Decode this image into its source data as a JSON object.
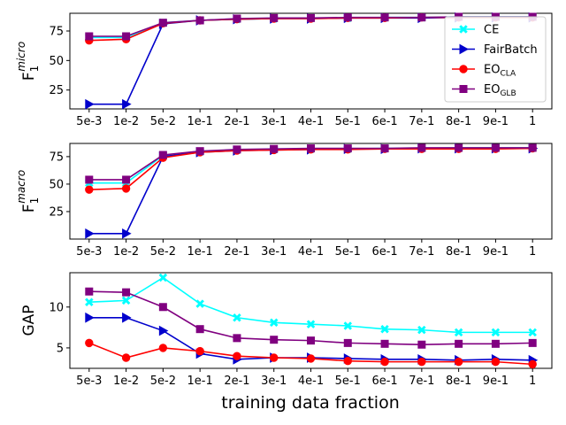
{
  "chart_data": [
    {
      "type": "line",
      "ylabel_main": "F",
      "ylabel_sub": "1",
      "ylabel_sup": "micro",
      "categories": [
        "5e-3",
        "1e-2",
        "5e-2",
        "1e-1",
        "2e-1",
        "3e-1",
        "4e-1",
        "5e-1",
        "6e-1",
        "7e-1",
        "8e-1",
        "9e-1",
        "1"
      ],
      "yticks": [
        25,
        50,
        75
      ],
      "ylim": [
        9,
        90
      ],
      "legend": "top-right",
      "series": [
        {
          "name": "CE",
          "key": "ce",
          "color": "#00ffff",
          "marker": "x",
          "values": [
            69.5,
            69.5,
            82,
            84,
            85,
            85.5,
            86,
            86,
            86.5,
            86.5,
            87,
            87,
            87
          ]
        },
        {
          "name": "FairBatch",
          "key": "fairbatch",
          "color": "#0000cc",
          "marker": "triangle",
          "values": [
            13,
            13,
            81,
            84,
            85,
            85.5,
            85.5,
            86,
            86,
            86,
            86.5,
            86.5,
            86.5
          ]
        },
        {
          "name": "EO",
          "sub": "CLA",
          "key": "eo_cla",
          "color": "#ff0000",
          "marker": "circle",
          "values": [
            67,
            68,
            81.5,
            84,
            85,
            85.5,
            85.5,
            86,
            86,
            86.5,
            86.5,
            86.5,
            86.5
          ]
        },
        {
          "name": "EO",
          "sub": "GLB",
          "key": "eo_glb",
          "color": "#800080",
          "marker": "square",
          "values": [
            70.5,
            70.5,
            82,
            84,
            85.5,
            86,
            86,
            86.5,
            86.5,
            86.5,
            87,
            87,
            87
          ]
        }
      ]
    },
    {
      "type": "line",
      "ylabel_main": "F",
      "ylabel_sub": "1",
      "ylabel_sup": "macro",
      "categories": [
        "5e-3",
        "1e-2",
        "5e-2",
        "1e-1",
        "2e-1",
        "3e-1",
        "4e-1",
        "5e-1",
        "6e-1",
        "7e-1",
        "8e-1",
        "9e-1",
        "1"
      ],
      "yticks": [
        25,
        50,
        75
      ],
      "ylim": [
        0,
        87
      ],
      "series": [
        {
          "name": "CE",
          "key": "ce",
          "color": "#00ffff",
          "marker": "x",
          "values": [
            51,
            51,
            76,
            79.5,
            81,
            81.5,
            82,
            82,
            82.5,
            82.5,
            83,
            83,
            83
          ]
        },
        {
          "name": "FairBatch",
          "key": "fairbatch",
          "color": "#0000cc",
          "marker": "triangle",
          "values": [
            5,
            5,
            75,
            79,
            80.5,
            81,
            81.5,
            82,
            82,
            82.5,
            82.5,
            82.5,
            82.5
          ]
        },
        {
          "name": "EO",
          "sub": "CLA",
          "key": "eo_cla",
          "color": "#ff0000",
          "marker": "circle",
          "values": [
            45,
            46,
            74,
            79,
            80.5,
            81,
            81.5,
            81.5,
            82,
            82,
            82,
            82,
            82.5
          ]
        },
        {
          "name": "EO",
          "sub": "GLB",
          "key": "eo_glb",
          "color": "#800080",
          "marker": "square",
          "values": [
            54,
            54,
            76.5,
            80,
            81.5,
            82,
            82.5,
            82.5,
            82.5,
            83,
            83,
            83,
            83
          ]
        }
      ]
    },
    {
      "type": "line",
      "ylabel_main": "GAP",
      "categories": [
        "5e-3",
        "1e-2",
        "5e-2",
        "1e-1",
        "2e-1",
        "3e-1",
        "4e-1",
        "5e-1",
        "6e-1",
        "7e-1",
        "8e-1",
        "9e-1",
        "1"
      ],
      "yticks": [
        5,
        10
      ],
      "ylim": [
        2.5,
        14.2
      ],
      "xlabel": "training data fraction",
      "series": [
        {
          "name": "CE",
          "key": "ce",
          "color": "#00ffff",
          "marker": "x",
          "values": [
            10.6,
            10.8,
            13.6,
            10.4,
            8.7,
            8.1,
            7.9,
            7.7,
            7.3,
            7.2,
            6.9,
            6.9,
            6.9
          ]
        },
        {
          "name": "FairBatch",
          "key": "fairbatch",
          "color": "#0000cc",
          "marker": "triangle",
          "values": [
            8.7,
            8.7,
            7.1,
            4.3,
            3.6,
            3.8,
            3.8,
            3.7,
            3.6,
            3.6,
            3.5,
            3.6,
            3.5
          ]
        },
        {
          "name": "EO",
          "sub": "CLA",
          "key": "eo_cla",
          "color": "#ff0000",
          "marker": "circle",
          "values": [
            5.6,
            3.8,
            5.0,
            4.6,
            4.0,
            3.8,
            3.7,
            3.4,
            3.3,
            3.3,
            3.3,
            3.3,
            3.0
          ]
        },
        {
          "name": "EO",
          "sub": "GLB",
          "key": "eo_glb",
          "color": "#800080",
          "marker": "square",
          "values": [
            11.9,
            11.8,
            10.0,
            7.3,
            6.2,
            6.0,
            5.9,
            5.6,
            5.5,
            5.4,
            5.5,
            5.5,
            5.6
          ]
        }
      ]
    }
  ]
}
